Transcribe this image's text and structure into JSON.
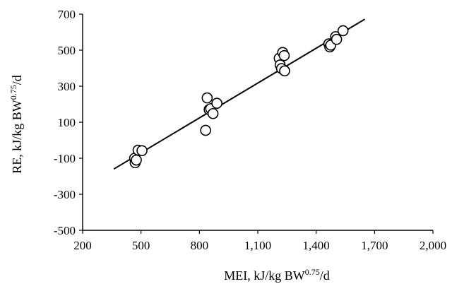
{
  "chart_data": {
    "type": "scatter",
    "xlabel": "MEI, kJ/kg BW",
    "xlabel_sup": "0.75",
    "xlabel_suffix": "/d",
    "ylabel": "RE, kJ/kg BW",
    "ylabel_sup": "0.75",
    "ylabel_suffix": "/d",
    "xlim": [
      200,
      2000
    ],
    "ylim": [
      -500,
      700
    ],
    "x_ticks": [
      200,
      500,
      800,
      1100,
      1400,
      1700,
      2000
    ],
    "x_tick_labels": [
      "200",
      "500",
      "800",
      "1,100",
      "1,400",
      "1,700",
      "2,000"
    ],
    "y_ticks": [
      -500,
      -300,
      -100,
      100,
      300,
      500,
      700
    ],
    "y_tick_labels": [
      "-500",
      "-300",
      "-100",
      "100",
      "300",
      "500",
      "700"
    ],
    "grid": false,
    "legend": "none",
    "points": [
      {
        "x": 467,
        "y": -100
      },
      {
        "x": 470,
        "y": -125
      },
      {
        "x": 476,
        "y": -110
      },
      {
        "x": 485,
        "y": -55
      },
      {
        "x": 505,
        "y": -58
      },
      {
        "x": 832,
        "y": 55
      },
      {
        "x": 840,
        "y": 235
      },
      {
        "x": 850,
        "y": 170
      },
      {
        "x": 858,
        "y": 175
      },
      {
        "x": 870,
        "y": 148
      },
      {
        "x": 890,
        "y": 205
      },
      {
        "x": 1210,
        "y": 455
      },
      {
        "x": 1215,
        "y": 418
      },
      {
        "x": 1222,
        "y": 398
      },
      {
        "x": 1228,
        "y": 487
      },
      {
        "x": 1236,
        "y": 470
      },
      {
        "x": 1238,
        "y": 385
      },
      {
        "x": 1465,
        "y": 535
      },
      {
        "x": 1470,
        "y": 518
      },
      {
        "x": 1475,
        "y": 528
      },
      {
        "x": 1500,
        "y": 575
      },
      {
        "x": 1505,
        "y": 560
      },
      {
        "x": 1538,
        "y": 608
      }
    ],
    "trendline": {
      "x": [
        360,
        1650
      ],
      "y": [
        -160,
        672
      ]
    }
  }
}
